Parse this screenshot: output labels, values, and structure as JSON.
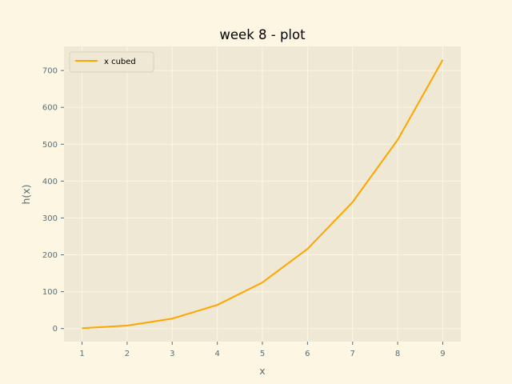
{
  "chart_data": {
    "type": "line",
    "title": "week 8 - plot",
    "xlabel": "x",
    "ylabel": "h(x)",
    "x": [
      1,
      2,
      3,
      4,
      5,
      6,
      7,
      8,
      9
    ],
    "series": [
      {
        "name": "x cubed",
        "values": [
          1,
          8,
          27,
          64,
          125,
          216,
          343,
          512,
          729
        ],
        "color": "#ffa500"
      }
    ],
    "xticks": [
      1,
      2,
      3,
      4,
      5,
      6,
      7,
      8,
      9
    ],
    "yticks": [
      0,
      100,
      200,
      300,
      400,
      500,
      600,
      700
    ],
    "xlim": [
      0.6,
      9.4
    ],
    "ylim": [
      -35.4,
      765.4
    ],
    "grid": true,
    "legend_position": "upper-left",
    "colors": {
      "figure_background": "#fdf6e3",
      "plot_background": "#eee8d5",
      "grid": "#fdf6e3",
      "axis_text": "#586e75"
    }
  }
}
